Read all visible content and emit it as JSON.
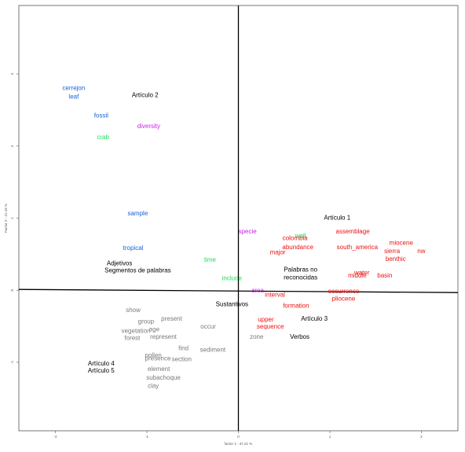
{
  "colors": {
    "adjetivos": "#1a5fd4",
    "segmentos": "#22dd55",
    "palabras_no_reconocidas": "#cc22ee",
    "sustantivos": "#ee1111",
    "verbos": "#7a7a7a",
    "articles": "#000000"
  },
  "chart_data": {
    "type": "scatter",
    "title": "",
    "xlabel": "factor 1 - 37.21 %",
    "ylabel": "Factor 2 - 21.16 %",
    "xlim": [
      -2.4,
      2.4
    ],
    "ylim": [
      -1.95,
      3.95
    ],
    "x_ticks": [
      "-2",
      "-1",
      "0",
      "1",
      "2"
    ],
    "y_ticks": [
      "-1",
      "0",
      "1",
      "2",
      "3"
    ],
    "grid": false,
    "legend": "none",
    "points": [
      {
        "label": "cerrejon",
        "x": -1.8,
        "y": 2.8,
        "group": "adjetivos"
      },
      {
        "label": "leaf",
        "x": -1.8,
        "y": 2.68,
        "group": "adjetivos"
      },
      {
        "label": "fossil",
        "x": -1.5,
        "y": 2.42,
        "group": "adjetivos"
      },
      {
        "label": "sample",
        "x": -1.1,
        "y": 1.06,
        "group": "adjetivos"
      },
      {
        "label": "tropical",
        "x": -1.15,
        "y": 0.58,
        "group": "adjetivos"
      },
      {
        "label": "crab",
        "x": -1.48,
        "y": 2.12,
        "group": "segmentos"
      },
      {
        "label": "time",
        "x": -0.31,
        "y": 0.42,
        "group": "segmentos"
      },
      {
        "label": "include",
        "x": -0.07,
        "y": 0.16,
        "group": "segmentos"
      },
      {
        "label": "wall",
        "x": 0.68,
        "y": 0.75,
        "group": "segmentos"
      },
      {
        "label": "diversity",
        "x": -0.98,
        "y": 2.27,
        "group": "palabras_no_reconocidas"
      },
      {
        "label": "specie",
        "x": 0.1,
        "y": 0.81,
        "group": "palabras_no_reconocidas"
      },
      {
        "label": "area",
        "x": 0.21,
        "y": -0.01,
        "group": "palabras_no_reconocidas"
      },
      {
        "label": "colombia",
        "x": 0.62,
        "y": 0.72,
        "group": "sustantivos"
      },
      {
        "label": "abundance",
        "x": 0.65,
        "y": 0.59,
        "group": "sustantivos"
      },
      {
        "label": "major",
        "x": 0.43,
        "y": 0.52,
        "group": "sustantivos"
      },
      {
        "label": "assemblage",
        "x": 1.25,
        "y": 0.81,
        "group": "sustantivos"
      },
      {
        "label": "south_america",
        "x": 1.3,
        "y": 0.59,
        "group": "sustantivos"
      },
      {
        "label": "miocene",
        "x": 1.78,
        "y": 0.65,
        "group": "sustantivos"
      },
      {
        "label": "sierra",
        "x": 1.68,
        "y": 0.54,
        "group": "sustantivos"
      },
      {
        "label": "nw",
        "x": 2.0,
        "y": 0.54,
        "group": "sustantivos"
      },
      {
        "label": "benthic",
        "x": 1.72,
        "y": 0.43,
        "group": "sustantivos"
      },
      {
        "label": "water",
        "x": 1.35,
        "y": 0.24,
        "group": "sustantivos"
      },
      {
        "label": "middle",
        "x": 1.3,
        "y": 0.2,
        "group": "sustantivos"
      },
      {
        "label": "basin",
        "x": 1.6,
        "y": 0.2,
        "group": "sustantivos"
      },
      {
        "label": "interval",
        "x": 0.4,
        "y": -0.07,
        "group": "sustantivos"
      },
      {
        "label": "occurrence",
        "x": 1.15,
        "y": -0.02,
        "group": "sustantivos"
      },
      {
        "label": "pliocene",
        "x": 1.15,
        "y": -0.12,
        "group": "sustantivos"
      },
      {
        "label": "formation",
        "x": 0.63,
        "y": -0.22,
        "group": "sustantivos"
      },
      {
        "label": "upper",
        "x": 0.3,
        "y": -0.41,
        "group": "sustantivos"
      },
      {
        "label": "sequence",
        "x": 0.35,
        "y": -0.51,
        "group": "sustantivos"
      },
      {
        "label": "show",
        "x": -1.15,
        "y": -0.28,
        "group": "verbos"
      },
      {
        "label": "present",
        "x": -0.73,
        "y": -0.4,
        "group": "verbos"
      },
      {
        "label": "group",
        "x": -1.01,
        "y": -0.44,
        "group": "verbos"
      },
      {
        "label": "vegetation",
        "x": -1.12,
        "y": -0.57,
        "group": "verbos"
      },
      {
        "label": "age",
        "x": -0.92,
        "y": -0.55,
        "group": "verbos"
      },
      {
        "label": "occur",
        "x": -0.33,
        "y": -0.51,
        "group": "verbos"
      },
      {
        "label": "forest",
        "x": -1.16,
        "y": -0.67,
        "group": "verbos"
      },
      {
        "label": "represent",
        "x": -0.82,
        "y": -0.65,
        "group": "verbos"
      },
      {
        "label": "zone",
        "x": 0.2,
        "y": -0.65,
        "group": "verbos"
      },
      {
        "label": "find",
        "x": -0.6,
        "y": -0.81,
        "group": "verbos"
      },
      {
        "label": "sediment",
        "x": -0.28,
        "y": -0.83,
        "group": "verbos"
      },
      {
        "label": "pollen",
        "x": -0.93,
        "y": -0.91,
        "group": "verbos"
      },
      {
        "label": "presence",
        "x": -0.88,
        "y": -0.95,
        "group": "verbos"
      },
      {
        "label": "section",
        "x": -0.62,
        "y": -0.96,
        "group": "verbos"
      },
      {
        "label": "element",
        "x": -0.87,
        "y": -1.1,
        "group": "verbos"
      },
      {
        "label": "subachoque",
        "x": -0.82,
        "y": -1.22,
        "group": "verbos"
      },
      {
        "label": "clay",
        "x": -0.93,
        "y": -1.33,
        "group": "verbos"
      }
    ],
    "annotations": [
      {
        "text": "Artículo 2",
        "x": -1.02,
        "y": 2.7
      },
      {
        "text": "Artículo 1",
        "x": 1.08,
        "y": 1.0
      },
      {
        "text": "Adjetivos",
        "x": -1.3,
        "y": 0.37
      },
      {
        "text": "Segmentos de palabras",
        "x": -1.1,
        "y": 0.27
      },
      {
        "text": "Palabras no",
        "x": 0.68,
        "y": 0.28
      },
      {
        "text": "reconocidas",
        "x": 0.68,
        "y": 0.17
      },
      {
        "text": "Sustantivos",
        "x": -0.07,
        "y": -0.2
      },
      {
        "text": "Artículo 3",
        "x": 0.83,
        "y": -0.4
      },
      {
        "text": "Verbos",
        "x": 0.67,
        "y": -0.65
      },
      {
        "text": "Artículo 4",
        "x": -1.5,
        "y": -1.02
      },
      {
        "text": "Artículo 5",
        "x": -1.5,
        "y": -1.12
      }
    ]
  }
}
